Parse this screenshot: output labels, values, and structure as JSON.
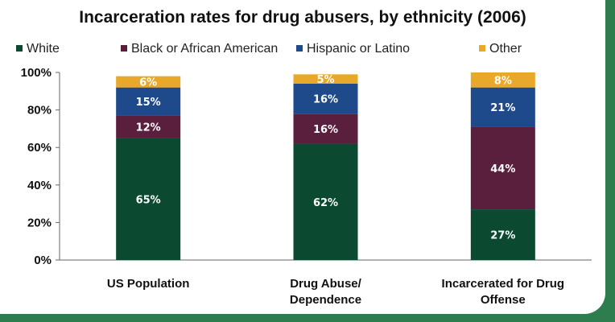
{
  "chart_data": {
    "type": "bar",
    "stacked": true,
    "title": "Incarceration rates for drug abusers, by ethnicity (2006)",
    "xlabel": "",
    "ylabel": "",
    "ylim": [
      0,
      100
    ],
    "yticks": [
      "0%",
      "20%",
      "40%",
      "60%",
      "80%",
      "100%"
    ],
    "legend_position": "top",
    "categories": [
      [
        "US Population"
      ],
      [
        "Drug Abuse/",
        "Dependence"
      ],
      [
        "Incarcerated for Drug",
        "Offense"
      ]
    ],
    "series": [
      {
        "name": "White",
        "color": "#0b4a30",
        "values": [
          65,
          62,
          27
        ],
        "labels": [
          "65%",
          "62%",
          "27%"
        ]
      },
      {
        "name": "Black or African American",
        "color": "#5a1f3c",
        "values": [
          12,
          16,
          44
        ],
        "labels": [
          "12%",
          "16%",
          "44%"
        ]
      },
      {
        "name": "Hispanic or Latino",
        "color": "#1e4a8c",
        "values": [
          15,
          16,
          21
        ],
        "labels": [
          "15%",
          "16%",
          "21%"
        ]
      },
      {
        "name": "Other",
        "color": "#e8a92a",
        "values": [
          6,
          5,
          8
        ],
        "labels": [
          "6%",
          "5%",
          "8%"
        ]
      }
    ]
  }
}
